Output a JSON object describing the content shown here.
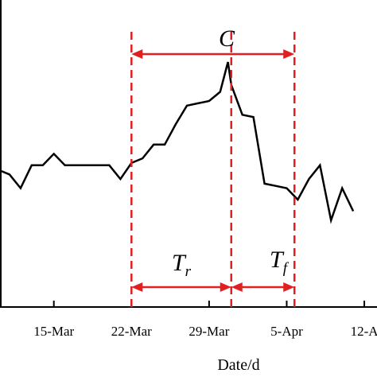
{
  "chart_data": {
    "type": "line",
    "title": "",
    "xlabel": "Date/d",
    "ylabel": "",
    "x_tick_labels": [
      "15-Mar",
      "22-Mar",
      "29-Mar",
      "5-Apr",
      "12-A"
    ],
    "x_tick_days": [
      15,
      22,
      29,
      36,
      43
    ],
    "x_range_days": [
      10,
      44
    ],
    "y_range": [
      0,
      100
    ],
    "grid": false,
    "series": [
      {
        "color": "#000000",
        "x": [
          10,
          11,
          12,
          13,
          14,
          15,
          16,
          17,
          18,
          19,
          20,
          21,
          22,
          23,
          24,
          25,
          26,
          27,
          28,
          29,
          30,
          30.7,
          31,
          32,
          33,
          34,
          35,
          36,
          37,
          38,
          39,
          40,
          41,
          42
        ],
        "values": [
          53,
          51,
          45,
          55,
          55,
          60,
          55,
          55,
          55,
          55,
          55,
          49,
          56,
          58,
          64,
          64,
          73,
          81,
          82,
          83,
          87,
          100,
          90,
          77,
          76,
          47,
          46,
          45,
          40,
          49,
          55,
          31,
          45,
          35
        ]
      }
    ],
    "markers": [
      {
        "x": 22,
        "color": "#e02020"
      },
      {
        "x": 31,
        "color": "#e02020"
      },
      {
        "x": 36.7,
        "color": "#e02020"
      }
    ],
    "annotations": {
      "C": "C",
      "Tr_main": "T",
      "Tr_sub": "r",
      "Tf_main": "T",
      "Tf_sub": "f"
    }
  }
}
